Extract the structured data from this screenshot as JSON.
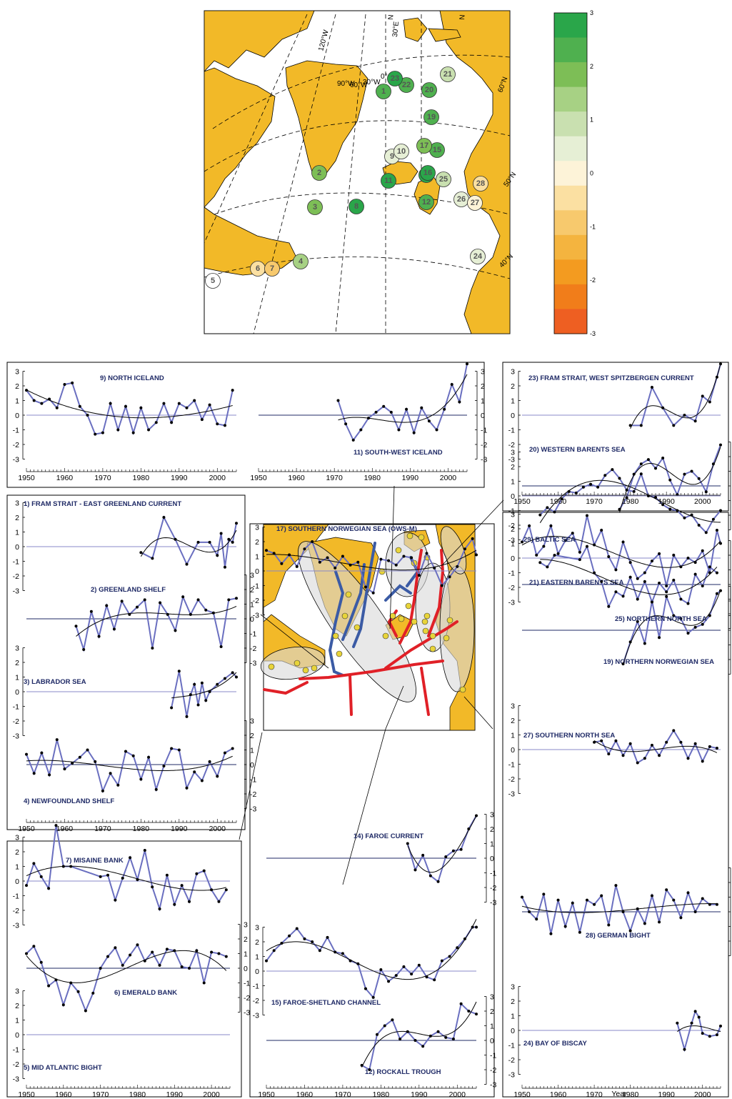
{
  "colorbar": {
    "labels": [
      "3",
      "2",
      "1",
      "0",
      "-1",
      "-2",
      "-3"
    ],
    "colors": [
      "#2aa64a",
      "#4fb04f",
      "#7dbe56",
      "#a7d184",
      "#c9e0b0",
      "#e6efd5",
      "#fdf3d8",
      "#fbe0a2",
      "#f7c96d",
      "#f4b43f",
      "#f39b20",
      "#f17d1a",
      "#ee5f22"
    ]
  },
  "map": {
    "land_color": "#f2b928",
    "lat_labels": [
      "60°N",
      "50°N",
      "40°N"
    ],
    "lon_labels": [
      "120°W",
      "90°W",
      "60°W",
      "30°W",
      "0°",
      "30°E",
      "N",
      "N"
    ],
    "stations": [
      {
        "id": "1",
        "c": "#4fb04f"
      },
      {
        "id": "2",
        "c": "#7dbe56"
      },
      {
        "id": "3",
        "c": "#7dbe56"
      },
      {
        "id": "4",
        "c": "#a7d184"
      },
      {
        "id": "5",
        "c": "#ffffff"
      },
      {
        "id": "6",
        "c": "#fbe0a2"
      },
      {
        "id": "7",
        "c": "#f7c96d"
      },
      {
        "id": "8",
        "c": "#2aa64a"
      },
      {
        "id": "9",
        "c": "#e6efd5"
      },
      {
        "id": "10",
        "c": "#e6efd5"
      },
      {
        "id": "11",
        "c": "#2aa64a"
      },
      {
        "id": "12",
        "c": "#4fb04f"
      },
      {
        "id": "14",
        "c": "#2aa64a"
      },
      {
        "id": "15",
        "c": "#4fb04f"
      },
      {
        "id": "16",
        "c": "#2aa64a"
      },
      {
        "id": "17",
        "c": "#7dbe56"
      },
      {
        "id": "19",
        "c": "#4fb04f"
      },
      {
        "id": "20",
        "c": "#4fb04f"
      },
      {
        "id": "21",
        "c": "#c9e0b0"
      },
      {
        "id": "22",
        "c": "#4fb04f"
      },
      {
        "id": "23",
        "c": "#2aa64a"
      },
      {
        "id": "24",
        "c": "#e6efd5"
      },
      {
        "id": "25",
        "c": "#c9e0b0"
      },
      {
        "id": "26",
        "c": "#e6efd5"
      },
      {
        "id": "27",
        "c": "#fdf3d8"
      },
      {
        "id": "28",
        "c": "#fbe0a2"
      }
    ]
  },
  "panels": {
    "yticks": [
      "3",
      "2",
      "1",
      "0",
      "-1",
      "-2",
      "-3"
    ],
    "xticks": [
      "1950",
      "1960",
      "1970",
      "1980",
      "1990",
      "2000"
    ]
  },
  "xaxis_label": "Year",
  "chart_data": [
    {
      "type": "line",
      "title": "9) NORTH ICELAND",
      "x_range": [
        1950,
        2005
      ],
      "ylim": [
        -3,
        3
      ],
      "x": [
        1950,
        1952,
        1954,
        1956,
        1958,
        1960,
        1962,
        1964,
        1966,
        1968,
        1970,
        1972,
        1974,
        1976,
        1978,
        1980,
        1982,
        1984,
        1986,
        1988,
        1990,
        1992,
        1994,
        1996,
        1998,
        2000,
        2002,
        2004
      ],
      "values": [
        1.7,
        1.0,
        0.8,
        1.1,
        0.5,
        2.1,
        2.2,
        0.6,
        0.0,
        -1.3,
        -1.2,
        0.8,
        -1.0,
        0.6,
        -1.2,
        0.5,
        -1.0,
        -0.5,
        0.8,
        -0.5,
        0.8,
        0.5,
        1.0,
        -0.3,
        0.7,
        -0.6,
        -0.7,
        1.7
      ]
    },
    {
      "type": "line",
      "title": "11) SOUTH-WEST ICELAND",
      "x_range": [
        1950,
        2005
      ],
      "ylim": [
        -3,
        3
      ],
      "x": [
        1971,
        1973,
        1975,
        1977,
        1979,
        1981,
        1983,
        1985,
        1987,
        1989,
        1991,
        1993,
        1995,
        1997,
        1999,
        2001,
        2003,
        2005
      ],
      "values": [
        1.0,
        -0.6,
        -1.7,
        -1.0,
        -0.2,
        0.2,
        0.6,
        0.2,
        -1.0,
        0.4,
        -1.2,
        0.5,
        -0.4,
        -1.0,
        0.4,
        2.1,
        0.9,
        3.5
      ]
    },
    {
      "type": "line",
      "title": "1) FRAM STRAIT  -  EAST GREENLAND CURRENT",
      "x_range": [
        1950,
        2005
      ],
      "ylim": [
        -3,
        3
      ],
      "x": [
        1980,
        1983,
        1986,
        1989,
        1992,
        1995,
        1998,
        2000,
        2001,
        2002,
        2003,
        2004,
        2005
      ],
      "values": [
        -0.4,
        -0.8,
        2.0,
        0.5,
        -1.2,
        0.3,
        0.3,
        -0.6,
        0.9,
        -1.4,
        0.5,
        0.3,
        1.6
      ]
    },
    {
      "type": "line",
      "title": "2) GREENLAND SHELF",
      "x_range": [
        1950,
        2005
      ],
      "ylim": [
        -3,
        3
      ],
      "x": [
        1963,
        1965,
        1967,
        1969,
        1971,
        1973,
        1975,
        1977,
        1979,
        1981,
        1983,
        1985,
        1987,
        1989,
        1991,
        1993,
        1995,
        1997,
        1999,
        2001,
        2003,
        2005
      ],
      "values": [
        -0.5,
        -2.1,
        0.5,
        -1.2,
        0.9,
        -0.7,
        1.2,
        0.3,
        0.8,
        1.3,
        -2.0,
        1.1,
        0.3,
        -0.8,
        1.5,
        0.3,
        1.3,
        0.6,
        0.4,
        -1.9,
        1.3,
        1.4
      ]
    },
    {
      "type": "line",
      "title": "3) LABRADOR SEA",
      "x_range": [
        1950,
        2005
      ],
      "ylim": [
        -3,
        3
      ],
      "x": [
        1988,
        1990,
        1992,
        1993,
        1994,
        1995,
        1996,
        1997,
        1998,
        2000,
        2002,
        2004,
        2005
      ],
      "values": [
        -1.1,
        1.4,
        -1.7,
        -0.2,
        0.5,
        -0.9,
        0.6,
        -0.6,
        0.0,
        0.5,
        0.9,
        1.3,
        1.0
      ]
    },
    {
      "type": "line",
      "title": "4) NEWFOUNDLAND SHELF",
      "x_range": [
        1950,
        2005
      ],
      "ylim": [
        -3,
        3
      ],
      "x": [
        1950,
        1952,
        1954,
        1956,
        1958,
        1960,
        1962,
        1964,
        1966,
        1968,
        1970,
        1972,
        1974,
        1976,
        1978,
        1980,
        1982,
        1984,
        1986,
        1988,
        1990,
        1992,
        1994,
        1996,
        1998,
        2000,
        2002,
        2004
      ],
      "values": [
        0.7,
        -0.6,
        0.8,
        -0.7,
        1.7,
        -0.3,
        0.1,
        0.5,
        1.0,
        0.2,
        -1.8,
        -0.6,
        -1.4,
        0.9,
        0.6,
        -1.0,
        0.5,
        -1.7,
        -0.1,
        1.1,
        1.0,
        -1.6,
        -0.5,
        -1.1,
        0.2,
        -0.8,
        0.8,
        1.1
      ]
    },
    {
      "type": "line",
      "title": "7) MISAINE BANK",
      "x_range": [
        1950,
        2005
      ],
      "ylim": [
        -3,
        3
      ],
      "x": [
        1950,
        1952,
        1954,
        1956,
        1958,
        1960,
        1962,
        1970,
        1972,
        1974,
        1976,
        1978,
        1980,
        1982,
        1984,
        1986,
        1988,
        1990,
        1992,
        1994,
        1996,
        1998,
        2000,
        2002,
        2004
      ],
      "values": [
        -0.3,
        1.2,
        0.3,
        -0.5,
        3.8,
        1.0,
        1.0,
        0.3,
        0.4,
        -1.3,
        0.2,
        1.6,
        0.1,
        2.1,
        -0.4,
        -1.9,
        0.4,
        -1.6,
        -0.3,
        -1.4,
        0.5,
        0.7,
        -0.6,
        -1.4,
        -0.6
      ]
    },
    {
      "type": "line",
      "title": "6) EMERALD BANK",
      "x_range": [
        1950,
        2005
      ],
      "ylim": [
        -3,
        3
      ],
      "x": [
        1950,
        1952,
        1954,
        1956,
        1958,
        1960,
        1962,
        1964,
        1966,
        1968,
        1970,
        1972,
        1974,
        1976,
        1978,
        1980,
        1982,
        1984,
        1986,
        1988,
        1990,
        1992,
        1994,
        1996,
        1998,
        2000,
        2002,
        2004
      ],
      "values": [
        1.0,
        1.5,
        0.4,
        -1.2,
        -0.8,
        -2.5,
        -1.0,
        -1.6,
        -2.9,
        -1.7,
        0.0,
        0.8,
        1.4,
        0.2,
        0.9,
        1.6,
        0.5,
        1.1,
        0.2,
        1.3,
        1.2,
        0.1,
        0.0,
        1.2,
        -1.0,
        1.1,
        1.0,
        0.8
      ]
    },
    {
      "type": "line",
      "title": "5) MID ATLANTIC BIGHT",
      "x_range": [
        1950,
        2005
      ],
      "ylim": [
        -3,
        3
      ],
      "x": [],
      "values": []
    },
    {
      "type": "line",
      "title": "17) SOUTHERN NORWEGIAN SEA (OWS-M)",
      "x_range": [
        1950,
        2005
      ],
      "ylim": [
        -3,
        3
      ],
      "x": [
        1950,
        1952,
        1954,
        1956,
        1958,
        1960,
        1962,
        1964,
        1966,
        1968,
        1970,
        1972,
        1974,
        1976,
        1978,
        1980,
        1982,
        1984,
        1986,
        1988,
        1990,
        1992,
        1994,
        1996,
        1998,
        2000,
        2002,
        2004,
        2005
      ],
      "values": [
        1.4,
        1.2,
        0.5,
        1.1,
        0.3,
        1.5,
        2.0,
        0.6,
        0.9,
        0.2,
        1.0,
        0.4,
        0.6,
        -1.1,
        -1.5,
        0.8,
        0.7,
        0.4,
        1.0,
        0.9,
        -0.3,
        1.2,
        0.2,
        -1.0,
        -0.4,
        0.3,
        1.5,
        2.2,
        1.1
      ]
    },
    {
      "type": "line",
      "title": "14) FAROE CURRENT",
      "x_range": [
        1950,
        2005
      ],
      "ylim": [
        -3,
        3
      ],
      "x": [
        1987,
        1989,
        1991,
        1993,
        1995,
        1997,
        1999,
        2001,
        2003,
        2005
      ],
      "values": [
        1.0,
        -0.8,
        0.2,
        -1.2,
        -1.6,
        0.1,
        0.5,
        0.6,
        2.0,
        2.9
      ]
    },
    {
      "type": "line",
      "title": "15) FAROE-SHETLAND CHANNEL",
      "x_range": [
        1950,
        2005
      ],
      "ylim": [
        -3,
        3
      ],
      "x": [
        1950,
        1952,
        1954,
        1956,
        1958,
        1960,
        1962,
        1964,
        1966,
        1968,
        1970,
        1972,
        1974,
        1976,
        1978,
        1980,
        1982,
        1984,
        1986,
        1988,
        1990,
        1992,
        1994,
        1996,
        1998,
        2000,
        2002,
        2004,
        2005
      ],
      "values": [
        0.7,
        1.4,
        1.9,
        2.4,
        2.9,
        2.2,
        2.0,
        1.4,
        2.3,
        1.3,
        1.2,
        0.7,
        0.5,
        -1.2,
        -1.8,
        0.1,
        -0.7,
        -0.3,
        0.3,
        -0.2,
        0.4,
        -0.4,
        -0.6,
        0.7,
        1.0,
        1.6,
        2.2,
        3.0,
        3.0
      ]
    },
    {
      "type": "line",
      "title": "12) ROCKALL TROUGH",
      "x_range": [
        1950,
        2005
      ],
      "ylim": [
        -3,
        3
      ],
      "x": [
        1975,
        1977,
        1979,
        1981,
        1983,
        1985,
        1987,
        1989,
        1991,
        1993,
        1995,
        1997,
        1999,
        2001,
        2003,
        2005
      ],
      "values": [
        -1.7,
        -2.0,
        0.4,
        1.0,
        1.4,
        0.1,
        0.6,
        0.0,
        -0.4,
        0.3,
        0.6,
        0.2,
        0.1,
        2.5,
        2.0,
        1.8
      ]
    },
    {
      "type": "line",
      "title": "23) FRAM STRAIT, WEST SPITZBERGEN CURRENT",
      "x_range": [
        1950,
        2005
      ],
      "ylim": [
        -3,
        3
      ],
      "x": [
        1980,
        1983,
        1986,
        1989,
        1992,
        1995,
        1998,
        2000,
        2002,
        2004,
        2005
      ],
      "values": [
        -0.7,
        -0.7,
        1.9,
        0.5,
        -0.7,
        0.0,
        -0.4,
        1.3,
        0.9,
        2.6,
        3.5
      ]
    },
    {
      "type": "line",
      "title": "20) WESTERN BARENTS SEA",
      "x_range": [
        1950,
        2005
      ],
      "ylim": [
        -3,
        3
      ],
      "x": [
        1977,
        1979,
        1981,
        1983,
        1985,
        1987,
        1989,
        1991,
        1993,
        1995,
        1997,
        1999,
        2001,
        2003,
        2005
      ],
      "values": [
        -1.6,
        -0.8,
        0.8,
        1.5,
        1.8,
        1.2,
        1.9,
        0.4,
        -0.6,
        0.8,
        1.0,
        0.5,
        -0.4,
        1.5,
        2.8
      ]
    },
    {
      "type": "line",
      "title": "21) EASTERN BARENTS SEA",
      "x_range": [
        1950,
        2005
      ],
      "ylim": [
        -3,
        3
      ],
      "x": [
        1950,
        1952,
        1954,
        1956,
        1958,
        1960,
        1962,
        1964,
        1966,
        1968,
        1970,
        1972,
        1974,
        1976,
        1978,
        1980,
        1982,
        1984,
        1986,
        1988,
        1990,
        1992,
        1994,
        1996,
        1998,
        2000,
        2002,
        2004,
        2005
      ],
      "values": [
        1.1,
        2.2,
        0.2,
        0.8,
        2.2,
        0.3,
        1.2,
        1.7,
        0.4,
        2.9,
        0.9,
        1.9,
        0.1,
        -0.8,
        1.1,
        -0.3,
        -1.4,
        -1.0,
        -0.2,
        0.3,
        -1.9,
        0.2,
        -0.6,
        0.0,
        -0.3,
        0.5,
        -1.0,
        1.9,
        1.0
      ]
    },
    {
      "type": "line",
      "title": "19) NORTHERN NORWEGIAN SEA",
      "x_range": [
        1950,
        2005
      ],
      "ylim": [
        -3,
        3
      ],
      "x": [
        1978,
        1980,
        1982,
        1984,
        1986,
        1988,
        1990,
        1992,
        1994,
        1996,
        1998,
        2000,
        2002,
        2004,
        2005
      ],
      "values": [
        -2.3,
        -0.8,
        0.6,
        -0.9,
        2.0,
        -0.5,
        2.3,
        1.0,
        0.8,
        -0.2,
        0.2,
        0.4,
        1.0,
        2.5,
        2.7
      ]
    },
    {
      "type": "line",
      "title": "29) BALTIC SEA",
      "x_range": [
        1950,
        2005
      ],
      "ylim": [
        -3,
        3
      ],
      "x": [
        1955,
        1957,
        1959,
        1961,
        1963,
        1965,
        1967,
        1969,
        1971,
        1973,
        1975,
        1977,
        1979,
        1981,
        1983,
        1985,
        1987,
        1989,
        1991,
        1993,
        1995,
        1997,
        1999,
        2001,
        2003,
        2005
      ],
      "values": [
        -1.3,
        -0.8,
        -1.1,
        -0.2,
        0.3,
        0.2,
        0.6,
        0.8,
        0.6,
        1.4,
        1.8,
        1.2,
        0.4,
        0.3,
        1.5,
        0.0,
        -0.1,
        -0.6,
        -0.9,
        -1.0,
        -1.5,
        -1.3,
        -2.0,
        -2.5,
        -1.6,
        -1.0
      ]
    },
    {
      "type": "line",
      "title": "25) NORTHERN NORTH SEA",
      "x_range": [
        1950,
        2005
      ],
      "ylim": [
        -3,
        3
      ],
      "x": [
        1955,
        1957,
        1959,
        1966,
        1968,
        1970,
        1972,
        1974,
        1976,
        1978,
        1980,
        1982,
        1984,
        1986,
        1988,
        1990,
        1992,
        1994,
        1996,
        1998,
        2000,
        2002,
        2004
      ],
      "values": [
        1.5,
        1.2,
        2.0,
        1.7,
        2.6,
        0.8,
        0.2,
        -1.5,
        -0.5,
        -0.8,
        0.5,
        -1.0,
        0.2,
        -1.2,
        0.1,
        -0.5,
        0.3,
        -1.0,
        -1.3,
        0.7,
        -0.1,
        1.2,
        0.8
      ]
    },
    {
      "type": "line",
      "title": "27) SOUTHERN NORTH SEA",
      "x_range": [
        1950,
        2005
      ],
      "ylim": [
        -3,
        3
      ],
      "x": [
        1970,
        1972,
        1974,
        1976,
        1978,
        1980,
        1982,
        1984,
        1986,
        1988,
        1990,
        1992,
        1994,
        1996,
        1998,
        2000,
        2002,
        2004
      ],
      "values": [
        0.5,
        0.6,
        -0.3,
        0.6,
        -0.4,
        0.4,
        -0.9,
        -0.6,
        0.3,
        -0.4,
        0.5,
        1.3,
        0.5,
        -0.6,
        0.4,
        -0.8,
        0.2,
        0.1
      ]
    },
    {
      "type": "line",
      "title": "28) GERMAN BIGHT",
      "x_range": [
        1950,
        2005
      ],
      "ylim": [
        -3,
        3
      ],
      "x": [
        1950,
        1952,
        1954,
        1956,
        1958,
        1960,
        1962,
        1964,
        1966,
        1968,
        1970,
        1972,
        1974,
        1976,
        1978,
        1980,
        1982,
        1984,
        1986,
        1988,
        1990,
        1992,
        1994,
        1996,
        1998,
        2000,
        2002,
        2004
      ],
      "values": [
        1.0,
        0.0,
        -0.5,
        1.2,
        -1.5,
        0.8,
        -1.0,
        0.6,
        -1.4,
        0.8,
        0.5,
        1.1,
        -0.9,
        1.8,
        0.0,
        -1.3,
        0.2,
        -0.8,
        1.1,
        -0.7,
        1.5,
        0.8,
        -0.4,
        1.3,
        0.0,
        0.9,
        0.5,
        0.5
      ]
    },
    {
      "type": "line",
      "title": "24) BAY OF BISCAY",
      "x_range": [
        1950,
        2005
      ],
      "ylim": [
        -3,
        3
      ],
      "x": [
        1993,
        1995,
        1997,
        1998,
        1999,
        2000,
        2002,
        2004,
        2005
      ],
      "values": [
        0.5,
        -1.3,
        0.5,
        1.3,
        0.9,
        -0.2,
        -0.4,
        -0.3,
        0.3
      ]
    }
  ]
}
